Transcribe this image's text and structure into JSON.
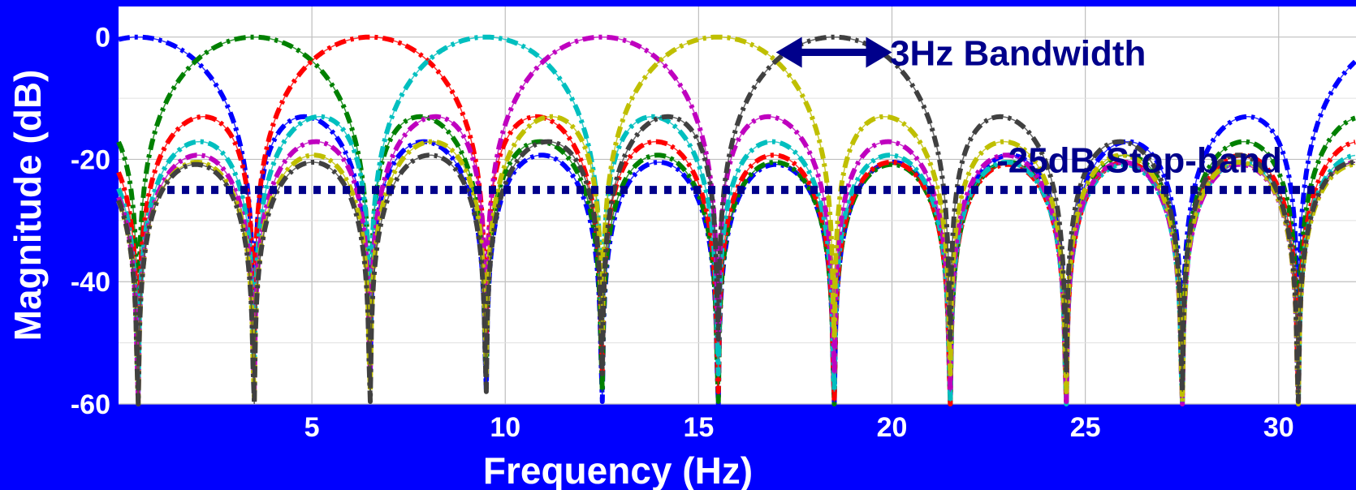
{
  "chart_data": {
    "type": "line",
    "title": "",
    "xlabel": "Frequency (Hz)",
    "ylabel": "Magnitude (dB)",
    "xlim": [
      0,
      32
    ],
    "ylim": [
      -60,
      5
    ],
    "xticks": [
      5,
      10,
      15,
      20,
      25,
      30
    ],
    "yticks": [
      0,
      -20,
      -40,
      -60
    ],
    "grid": true,
    "legend": "none",
    "colors": {
      "background": "#0000FF",
      "plot_area": "#FFFFFF",
      "grid": "#BFBFBF",
      "annotation": "#00008B",
      "ticks_text": "#FFFFFF"
    },
    "series": [
      {
        "color": "#0000FF",
        "center_hz": 0.5,
        "bandwidth_hz": 3,
        "peak_db": 0
      },
      {
        "color": "#008000",
        "center_hz": 3.5,
        "bandwidth_hz": 3,
        "peak_db": 0
      },
      {
        "color": "#FF0000",
        "center_hz": 6.5,
        "bandwidth_hz": 3,
        "peak_db": 0
      },
      {
        "color": "#00BFBF",
        "center_hz": 9.5,
        "bandwidth_hz": 3,
        "peak_db": 0
      },
      {
        "color": "#BF00BF",
        "center_hz": 12.5,
        "bandwidth_hz": 3,
        "peak_db": 0
      },
      {
        "color": "#BFBF00",
        "center_hz": 15.5,
        "bandwidth_hz": 3,
        "peak_db": 0
      },
      {
        "color": "#404040",
        "center_hz": 18.5,
        "bandwidth_hz": 3,
        "peak_db": 0
      }
    ],
    "stopband_line": {
      "y": -25,
      "x_start": 0,
      "x_end": 31
    },
    "annotations": [
      {
        "text": "3Hz Bandwidth",
        "x": 20.2,
        "y": -2.5,
        "arrow_from": 17,
        "arrow_to": 20,
        "arrow_y": -2.5
      },
      {
        "text": "-25dB Stop-band",
        "x": 22.7,
        "y": -20
      }
    ]
  }
}
